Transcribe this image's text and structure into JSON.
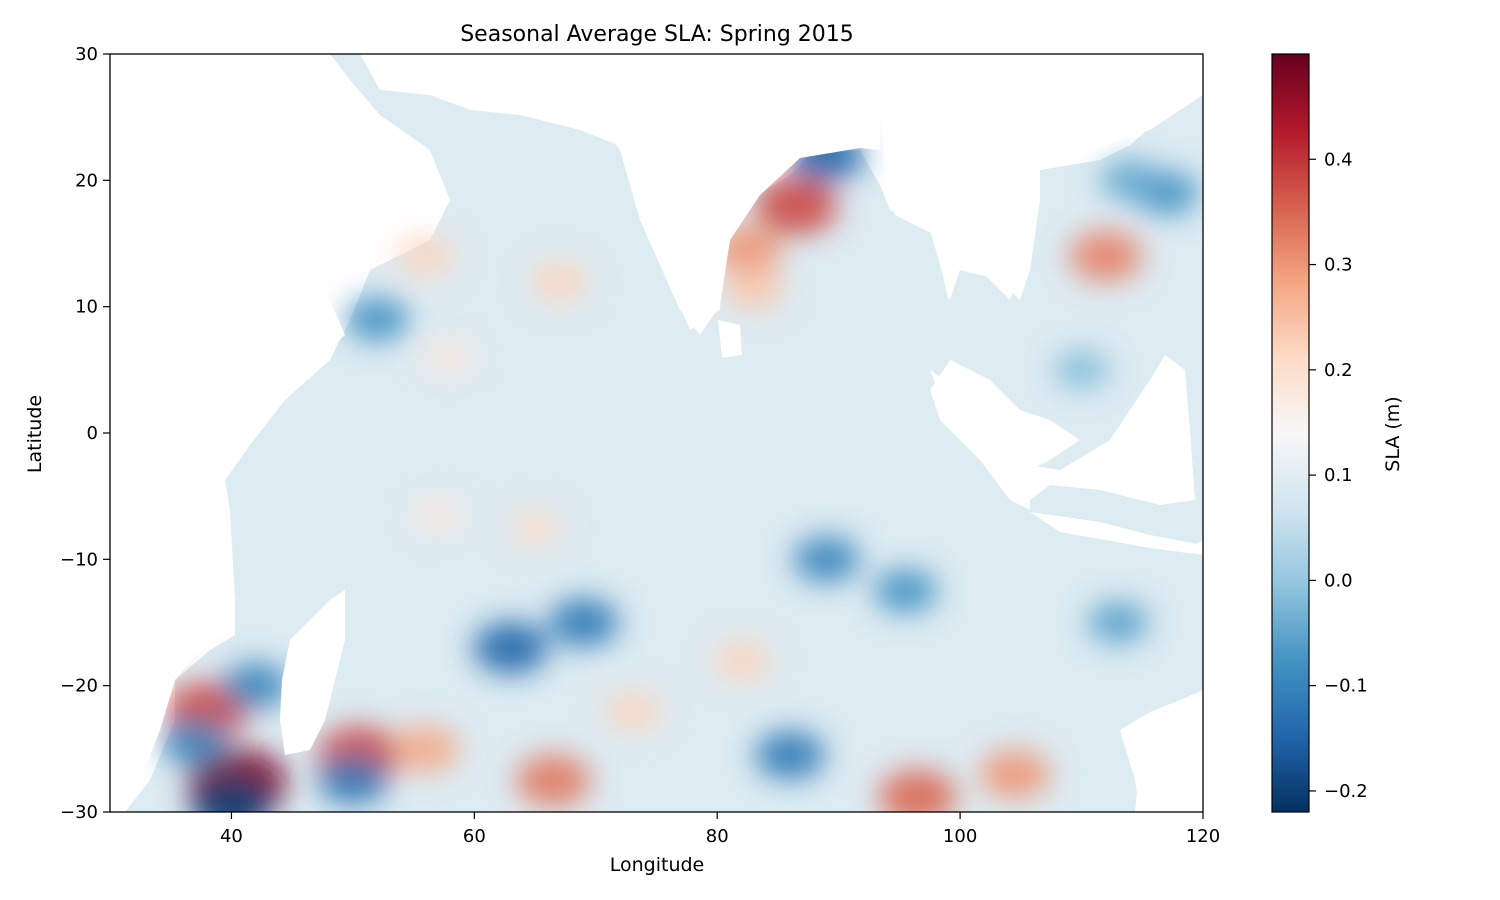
{
  "chart_data": {
    "type": "heatmap",
    "title": "Seasonal Average SLA: Spring 2015",
    "xlabel": "Longitude",
    "ylabel": "Latitude",
    "xlim": [
      30,
      120
    ],
    "ylim": [
      -30,
      30
    ],
    "x_ticks": [
      40,
      60,
      80,
      100,
      120
    ],
    "y_ticks": [
      30,
      20,
      10,
      0,
      -10,
      -20,
      -30
    ],
    "grid": false,
    "colormap": "RdBu_r",
    "colorbar": {
      "label": "SLA (m)",
      "range": [
        -0.22,
        0.5
      ],
      "ticks": [
        0.4,
        0.3,
        0.2,
        0.1,
        0.0,
        -0.1,
        -0.2
      ],
      "tick_labels": [
        "0.4",
        "0.3",
        "0.2",
        "0.1",
        "0.0",
        "−0.1",
        "−0.2"
      ]
    },
    "background_sla": 0.09,
    "anomaly_features": [
      {
        "lon": 40.5,
        "lat": -27.7,
        "sla": 0.48
      },
      {
        "lon": 38.0,
        "lat": -22.0,
        "sla": 0.38
      },
      {
        "lon": 50.5,
        "lat": -25.5,
        "sla": 0.38
      },
      {
        "lon": 56.0,
        "lat": -25.0,
        "sla": 0.28
      },
      {
        "lon": 66.5,
        "lat": -27.5,
        "sla": 0.33
      },
      {
        "lon": 96.5,
        "lat": -28.8,
        "sla": 0.35
      },
      {
        "lon": 104.5,
        "lat": -27.0,
        "sla": 0.3
      },
      {
        "lon": 86.5,
        "lat": 18.0,
        "sla": 0.38
      },
      {
        "lon": 82.5,
        "lat": 14.5,
        "sla": 0.3
      },
      {
        "lon": 83.0,
        "lat": 11.5,
        "sla": 0.24
      },
      {
        "lon": 112.0,
        "lat": 14.0,
        "sla": 0.32
      },
      {
        "lon": 56.0,
        "lat": 14.0,
        "sla": 0.22
      },
      {
        "lon": 67.0,
        "lat": 12.0,
        "sla": 0.22
      },
      {
        "lon": 58.0,
        "lat": 6.0,
        "sla": 0.18
      },
      {
        "lon": 65.0,
        "lat": -7.5,
        "sla": 0.2
      },
      {
        "lon": 57.0,
        "lat": -6.5,
        "sla": 0.18
      },
      {
        "lon": 73.0,
        "lat": -22.0,
        "sla": 0.22
      },
      {
        "lon": 82.0,
        "lat": -18.0,
        "sla": 0.22
      },
      {
        "lon": 89.0,
        "lat": 22.0,
        "sla": -0.15
      },
      {
        "lon": 63.0,
        "lat": -17.0,
        "sla": -0.15
      },
      {
        "lon": 69.0,
        "lat": -15.0,
        "sla": -0.12
      },
      {
        "lon": 89.0,
        "lat": -10.0,
        "sla": -0.1
      },
      {
        "lon": 40.0,
        "lat": -29.5,
        "sla": -0.2
      },
      {
        "lon": 50.0,
        "lat": -27.5,
        "sla": -0.12
      },
      {
        "lon": 95.5,
        "lat": -12.5,
        "sla": -0.08
      },
      {
        "lon": 86.0,
        "lat": -25.5,
        "sla": -0.12
      },
      {
        "lon": 117.0,
        "lat": 19.0,
        "sla": -0.08
      },
      {
        "lon": 114.0,
        "lat": 20.0,
        "sla": -0.05
      },
      {
        "lon": 110.0,
        "lat": 5.0,
        "sla": -0.02
      },
      {
        "lon": 113.0,
        "lat": -15.0,
        "sla": -0.06
      },
      {
        "lon": 52.0,
        "lat": 9.0,
        "sla": -0.08
      },
      {
        "lon": 42.0,
        "lat": -20.0,
        "sla": -0.1
      },
      {
        "lon": 37.0,
        "lat": -24.5,
        "sla": -0.1
      }
    ]
  }
}
